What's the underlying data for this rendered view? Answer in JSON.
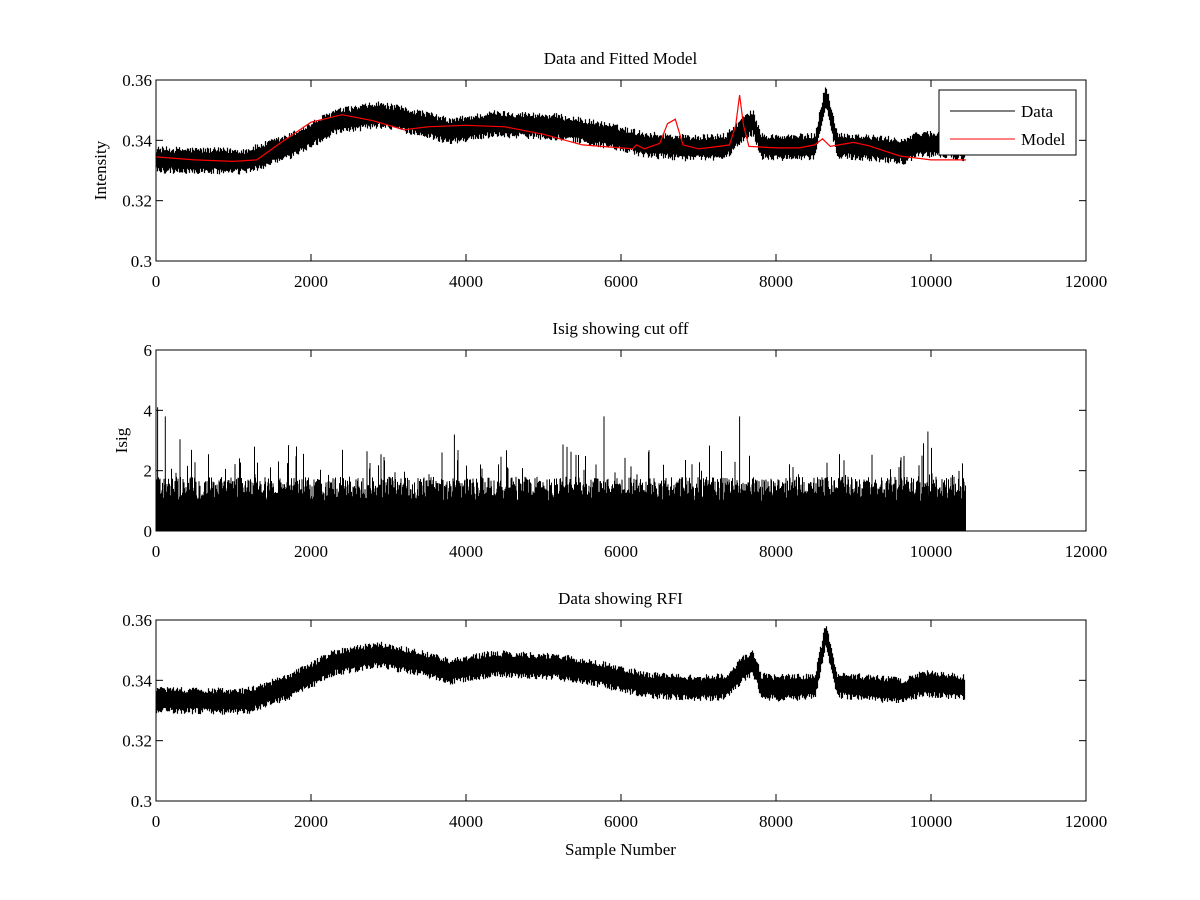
{
  "figure": {
    "background": "#ffffff"
  },
  "chart_data": [
    {
      "type": "line",
      "title": "Data and Fitted Model",
      "xlabel": "",
      "ylabel": "Intensity",
      "xlim": [
        0,
        12000
      ],
      "ylim": [
        0.3,
        0.36
      ],
      "xticks": [
        0,
        2000,
        4000,
        6000,
        8000,
        10000,
        12000
      ],
      "yticks": [
        0.3,
        0.32,
        0.34,
        0.36
      ],
      "xtick_labels": [
        "0",
        "2000",
        "4000",
        "6000",
        "8000",
        "10000",
        "12000"
      ],
      "ytick_labels": [
        "0.3",
        "0.32",
        "0.34",
        "0.36"
      ],
      "grid": false,
      "legend": "top-right",
      "series": [
        {
          "name": "Data",
          "color": "#000000",
          "style": "noisy",
          "n_samples": 10450,
          "noise_amplitude": 0.0035,
          "baseline": [
            [
              0,
              0.3335
            ],
            [
              1000,
              0.333
            ],
            [
              1500,
              0.338
            ],
            [
              2000,
              0.346
            ],
            [
              2500,
              0.3485
            ],
            [
              3000,
              0.3455
            ],
            [
              3300,
              0.343
            ],
            [
              3800,
              0.3455
            ],
            [
              4500,
              0.3445
            ],
            [
              5000,
              0.342
            ],
            [
              5500,
              0.3385
            ],
            [
              6000,
              0.3375
            ],
            [
              6200,
              0.3375
            ],
            [
              6400,
              0.338
            ],
            [
              6600,
              0.344
            ],
            [
              6700,
              0.346
            ],
            [
              6800,
              0.338
            ],
            [
              7000,
              0.3375
            ],
            [
              7400,
              0.338
            ],
            [
              7520,
              0.355
            ],
            [
              7650,
              0.3385
            ],
            [
              8000,
              0.3375
            ],
            [
              8400,
              0.3365
            ],
            [
              8600,
              0.339
            ],
            [
              9000,
              0.338
            ],
            [
              9500,
              0.335
            ],
            [
              10000,
              0.333
            ],
            [
              10450,
              0.333
            ]
          ]
        },
        {
          "name": "Model",
          "color": "#ff0000",
          "style": "line",
          "points": [
            [
              0,
              0.3345
            ],
            [
              500,
              0.3335
            ],
            [
              1000,
              0.333
            ],
            [
              1300,
              0.3335
            ],
            [
              1600,
              0.339
            ],
            [
              2000,
              0.346
            ],
            [
              2400,
              0.3485
            ],
            [
              2800,
              0.3465
            ],
            [
              3200,
              0.3435
            ],
            [
              3500,
              0.3445
            ],
            [
              4000,
              0.345
            ],
            [
              4500,
              0.3445
            ],
            [
              5000,
              0.342
            ],
            [
              5500,
              0.3385
            ],
            [
              6000,
              0.3375
            ],
            [
              6150,
              0.3372
            ],
            [
              6200,
              0.3385
            ],
            [
              6300,
              0.3372
            ],
            [
              6500,
              0.339
            ],
            [
              6600,
              0.3455
            ],
            [
              6700,
              0.347
            ],
            [
              6800,
              0.3385
            ],
            [
              7000,
              0.3372
            ],
            [
              7200,
              0.3378
            ],
            [
              7400,
              0.3385
            ],
            [
              7480,
              0.345
            ],
            [
              7530,
              0.355
            ],
            [
              7580,
              0.345
            ],
            [
              7650,
              0.338
            ],
            [
              7800,
              0.3378
            ],
            [
              8000,
              0.3375
            ],
            [
              8300,
              0.3375
            ],
            [
              8500,
              0.3385
            ],
            [
              8600,
              0.3405
            ],
            [
              8700,
              0.338
            ],
            [
              9000,
              0.3393
            ],
            [
              9200,
              0.3382
            ],
            [
              9600,
              0.3348
            ],
            [
              10000,
              0.3335
            ],
            [
              10450,
              0.3335
            ]
          ]
        }
      ]
    },
    {
      "type": "line",
      "title": "Isig showing cut off",
      "xlabel": "",
      "ylabel": "Isig",
      "xlim": [
        0,
        12000
      ],
      "ylim": [
        0,
        6
      ],
      "xticks": [
        0,
        2000,
        4000,
        6000,
        8000,
        10000,
        12000
      ],
      "yticks": [
        0,
        2,
        4,
        6
      ],
      "xtick_labels": [
        "0",
        "2000",
        "4000",
        "6000",
        "8000",
        "10000",
        "12000"
      ],
      "ytick_labels": [
        "0",
        "2",
        "4",
        "6"
      ],
      "grid": false,
      "legend": "none",
      "series": [
        {
          "color": "#000000",
          "style": "spiky",
          "n_samples": 10450,
          "typical_max": 1.8,
          "peak_max": 4.1,
          "spikes": [
            [
              20,
              4.1
            ],
            [
              120,
              3.8
            ],
            [
              5780,
              3.8
            ],
            [
              7530,
              3.8
            ],
            [
              9960,
              3.3
            ],
            [
              3850,
              3.2
            ]
          ]
        }
      ]
    },
    {
      "type": "line",
      "title": "Data showing RFI",
      "xlabel": "Sample Number",
      "ylabel": "",
      "xlim": [
        0,
        12000
      ],
      "ylim": [
        0.3,
        0.36
      ],
      "xticks": [
        0,
        2000,
        4000,
        6000,
        8000,
        10000,
        12000
      ],
      "yticks": [
        0.3,
        0.32,
        0.34,
        0.36
      ],
      "xtick_labels": [
        "0",
        "2000",
        "4000",
        "6000",
        "8000",
        "10000",
        "12000"
      ],
      "ytick_labels": [
        "0.3",
        "0.32",
        "0.34",
        "0.36"
      ],
      "grid": false,
      "legend": "none",
      "series": [
        {
          "color": "#000000",
          "style": "noisy",
          "n_samples": 10450,
          "noise_amplitude": 0.0035,
          "baseline": [
            [
              0,
              0.3335
            ],
            [
              1000,
              0.333
            ],
            [
              1500,
              0.338
            ],
            [
              2000,
              0.346
            ],
            [
              2500,
              0.3485
            ],
            [
              3000,
              0.3455
            ],
            [
              3300,
              0.343
            ],
            [
              3800,
              0.3455
            ],
            [
              4500,
              0.3445
            ],
            [
              5000,
              0.342
            ],
            [
              5500,
              0.3385
            ],
            [
              6000,
              0.3375
            ],
            [
              6200,
              0.3375
            ],
            [
              6400,
              0.338
            ],
            [
              6600,
              0.344
            ],
            [
              6700,
              0.346
            ],
            [
              6800,
              0.338
            ],
            [
              7000,
              0.3375
            ],
            [
              7400,
              0.338
            ],
            [
              7520,
              0.355
            ],
            [
              7650,
              0.3385
            ],
            [
              8000,
              0.3375
            ],
            [
              8400,
              0.3365
            ],
            [
              8600,
              0.339
            ],
            [
              9000,
              0.338
            ],
            [
              9500,
              0.335
            ],
            [
              10000,
              0.333
            ],
            [
              10450,
              0.333
            ]
          ]
        }
      ]
    }
  ]
}
